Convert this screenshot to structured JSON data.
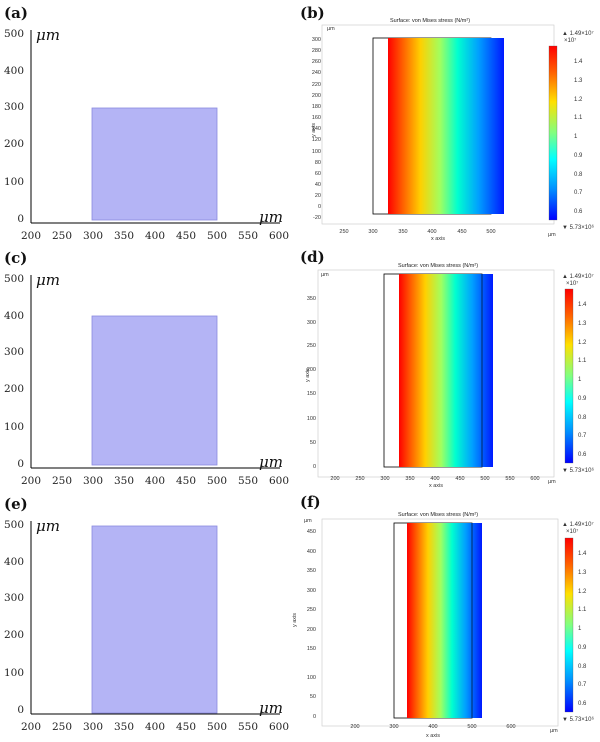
{
  "figure": {
    "panels": [
      {
        "label": "(a)",
        "unit": "μm",
        "x_ticks": [
          "200",
          "250",
          "300",
          "350",
          "400",
          "450",
          "500",
          "550",
          "600"
        ],
        "y_ticks": [
          "0",
          "100",
          "200",
          "300",
          "400",
          "500"
        ],
        "rect_x": [
          300,
          500
        ],
        "rect_y": [
          0,
          300
        ],
        "fill": "#b4b4f5",
        "stroke": "#8a8ae0"
      },
      {
        "label": "(c)",
        "unit": "μm",
        "x_ticks": [
          "200",
          "250",
          "300",
          "350",
          "400",
          "450",
          "500",
          "550",
          "600"
        ],
        "y_ticks": [
          "0",
          "100",
          "200",
          "300",
          "400",
          "500"
        ],
        "rect_x": [
          300,
          500
        ],
        "rect_y": [
          0,
          400
        ],
        "fill": "#b4b4f5",
        "stroke": "#8a8ae0"
      },
      {
        "label": "(e)",
        "unit": "μm",
        "x_ticks": [
          "200",
          "250",
          "300",
          "350",
          "400",
          "450",
          "500",
          "550",
          "600"
        ],
        "y_ticks": [
          "0",
          "100",
          "200",
          "300",
          "400",
          "500"
        ],
        "rect_x": [
          300,
          500
        ],
        "rect_y": [
          0,
          500
        ],
        "fill": "#b4b4f5",
        "stroke": "#8a8ae0"
      }
    ],
    "sims": [
      {
        "label": "(b)",
        "title": "Surface: von Mises stress (N/m²)",
        "xaxis": "x axis",
        "yaxis": "y axis",
        "unit": "µm",
        "x_ticks": [
          "250",
          "300",
          "350",
          "400",
          "450",
          "500"
        ],
        "y_ticks": [
          "300",
          "280",
          "260",
          "240",
          "220",
          "200",
          "180",
          "160",
          "140",
          "120",
          "100",
          "80",
          "60",
          "40",
          "20",
          "0",
          "-20"
        ],
        "cb_max": "▲ 1.49×10⁷",
        "cb_exp": "×10⁷",
        "cb_min": "▼ 5.73×10⁶",
        "cb_ticks": [
          "1.4",
          "1.3",
          "1.2",
          "1.1",
          "1",
          "0.9",
          "0.8",
          "0.7",
          "0.6"
        ]
      },
      {
        "label": "(d)",
        "title": "Surface: von Mises stress (N/m²)",
        "xaxis": "x axis",
        "yaxis": "y axis",
        "unit": "µm",
        "x_ticks": [
          "200",
          "250",
          "300",
          "350",
          "400",
          "450",
          "500",
          "550",
          "600"
        ],
        "y_ticks": [
          "350",
          "300",
          "250",
          "200",
          "150",
          "100",
          "50",
          "0"
        ],
        "cb_max": "▲ 1.49×10⁷",
        "cb_exp": "×10⁷",
        "cb_min": "▼ 5.73×10⁶",
        "cb_ticks": [
          "1.4",
          "1.3",
          "1.2",
          "1.1",
          "1",
          "0.9",
          "0.8",
          "0.7",
          "0.6"
        ]
      },
      {
        "label": "(f)",
        "title": "Surface: von Mises stress (N/m²)",
        "xaxis": "x axis",
        "yaxis": "y axis",
        "unit": "µm",
        "x_ticks": [
          "200",
          "300",
          "400",
          "500",
          "600"
        ],
        "y_ticks": [
          "450",
          "400",
          "350",
          "300",
          "250",
          "200",
          "150",
          "100",
          "50",
          "0"
        ],
        "cb_max": "▲ 1.49×10⁷",
        "cb_exp": "×10⁷",
        "cb_min": "▼ 5.73×10⁶",
        "cb_ticks": [
          "1.4",
          "1.3",
          "1.2",
          "1.1",
          "1",
          "0.9",
          "0.8",
          "0.7",
          "0.6"
        ]
      }
    ],
    "colormap": [
      "#0000ff",
      "#0080ff",
      "#00ffff",
      "#80ff80",
      "#ffff00",
      "#ff8000",
      "#ff0000"
    ]
  }
}
